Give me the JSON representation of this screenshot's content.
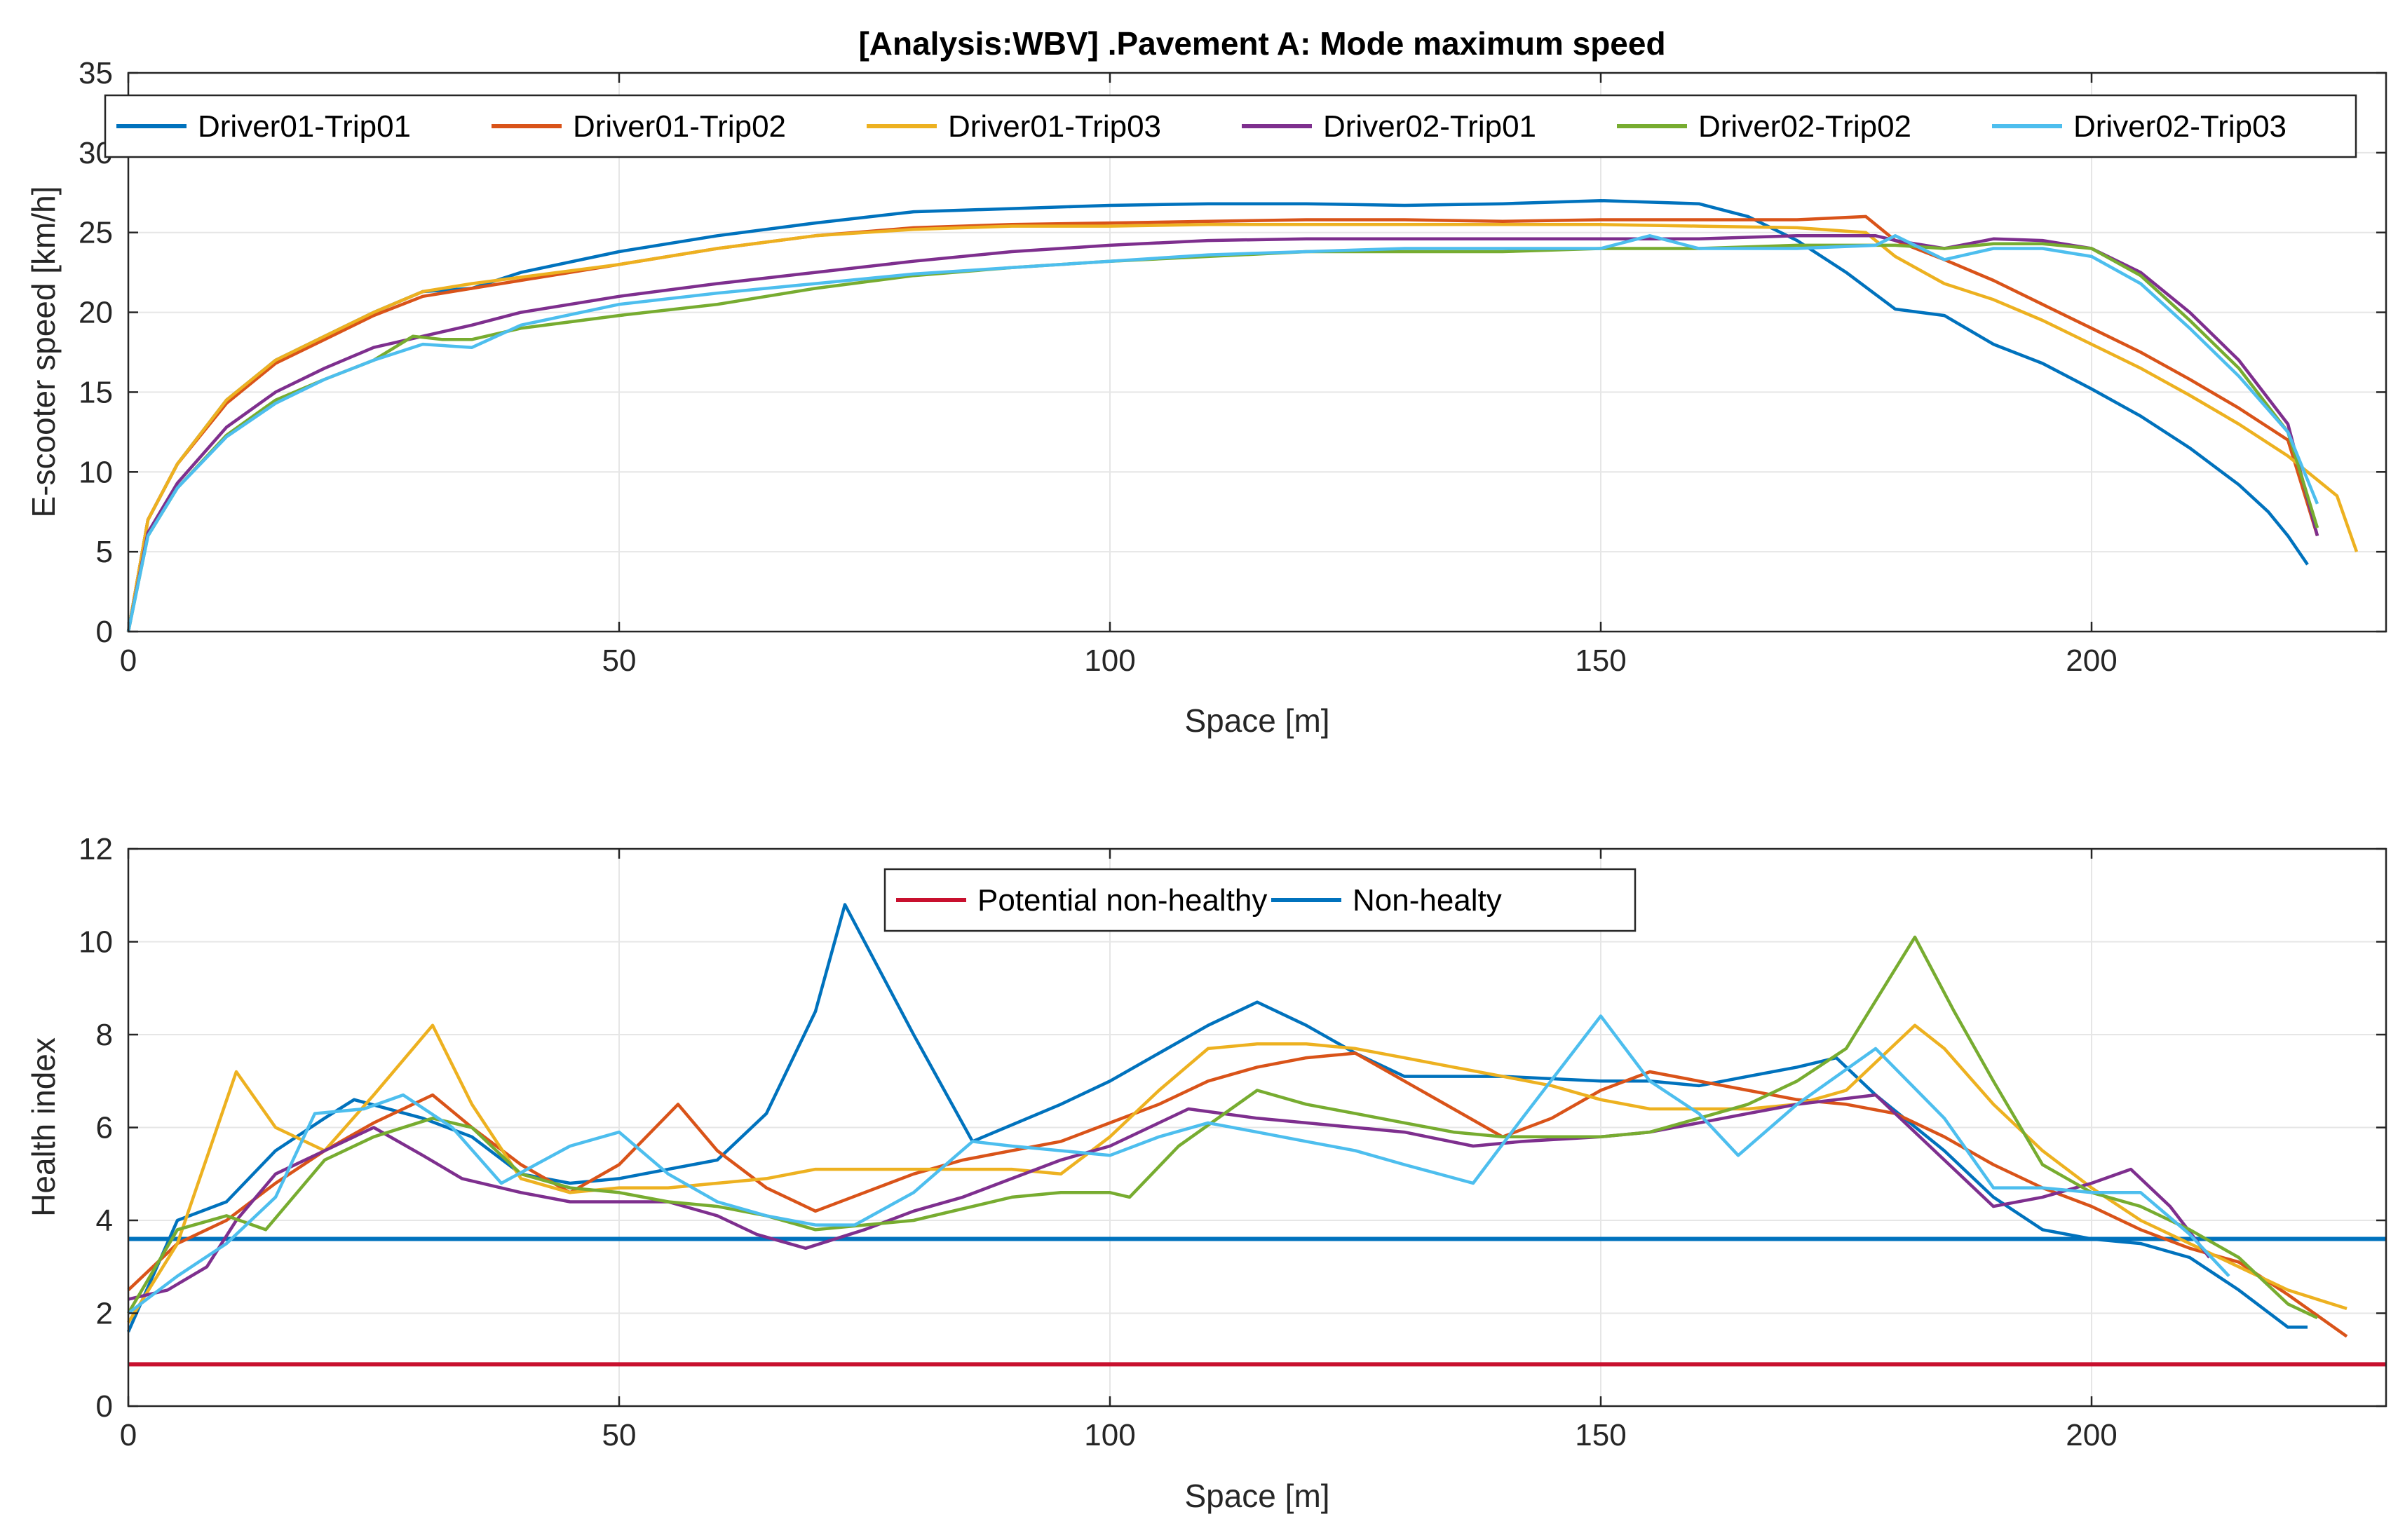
{
  "chart_data": [
    {
      "type": "line",
      "title": "[Analysis:WBV] .Pavement A: Mode maximum speed",
      "xlabel": "Space [m]",
      "ylabel": "E-scooter speed [km/h]",
      "xlim": [
        0,
        230
      ],
      "ylim": [
        0,
        35
      ],
      "xticks": [
        0,
        50,
        100,
        150,
        200
      ],
      "yticks": [
        0,
        5,
        10,
        15,
        20,
        25,
        30,
        35
      ],
      "grid": true,
      "legend": "top, horizontal",
      "series": [
        {
          "name": "Driver01-Trip01",
          "color": "#0072BD",
          "x": [
            0,
            2,
            5,
            10,
            15,
            20,
            25,
            30,
            35,
            40,
            50,
            60,
            70,
            80,
            90,
            100,
            110,
            120,
            130,
            140,
            150,
            160,
            165,
            170,
            175,
            180,
            185,
            190,
            195,
            200,
            205,
            210,
            215,
            218,
            220,
            222
          ],
          "y": [
            0,
            7,
            10.5,
            14.5,
            17,
            18.5,
            20,
            21.3,
            21.5,
            22.5,
            23.8,
            24.8,
            25.6,
            26.3,
            26.5,
            26.7,
            26.8,
            26.8,
            26.7,
            26.8,
            27,
            26.8,
            26,
            24.5,
            22.5,
            20.2,
            19.8,
            18,
            16.8,
            15.2,
            13.5,
            11.5,
            9.2,
            7.5,
            6,
            4.2
          ]
        },
        {
          "name": "Driver01-Trip02",
          "color": "#D95319",
          "x": [
            0,
            2,
            5,
            10,
            15,
            20,
            25,
            30,
            35,
            40,
            50,
            60,
            70,
            80,
            90,
            100,
            110,
            120,
            130,
            140,
            150,
            160,
            170,
            177,
            180,
            185,
            190,
            195,
            200,
            205,
            210,
            215,
            220,
            223
          ],
          "y": [
            0,
            7,
            10.5,
            14.3,
            16.8,
            18.3,
            19.8,
            21,
            21.5,
            22,
            23,
            24,
            24.8,
            25.3,
            25.5,
            25.6,
            25.7,
            25.8,
            25.8,
            25.7,
            25.8,
            25.8,
            25.8,
            26,
            24.5,
            23.3,
            22,
            20.5,
            19,
            17.5,
            15.8,
            14,
            12,
            6
          ]
        },
        {
          "name": "Driver01-Trip03",
          "color": "#EDB120",
          "x": [
            0,
            2,
            5,
            10,
            15,
            20,
            25,
            30,
            35,
            40,
            50,
            60,
            70,
            80,
            90,
            100,
            110,
            120,
            130,
            140,
            150,
            160,
            170,
            177,
            180,
            185,
            190,
            195,
            200,
            205,
            210,
            215,
            220,
            225,
            227
          ],
          "y": [
            0,
            7,
            10.5,
            14.5,
            17,
            18.5,
            20,
            21.3,
            21.8,
            22.2,
            23,
            24,
            24.8,
            25.2,
            25.4,
            25.4,
            25.5,
            25.5,
            25.5,
            25.5,
            25.5,
            25.4,
            25.3,
            25,
            23.5,
            21.8,
            20.8,
            19.5,
            18,
            16.5,
            14.8,
            13,
            11,
            8.5,
            5
          ]
        },
        {
          "name": "Driver02-Trip01",
          "color": "#7E2F8E",
          "x": [
            0,
            2,
            5,
            10,
            15,
            20,
            25,
            30,
            35,
            40,
            50,
            60,
            70,
            80,
            90,
            100,
            110,
            120,
            130,
            140,
            150,
            160,
            170,
            178,
            180,
            185,
            190,
            195,
            200,
            205,
            210,
            215,
            220,
            223
          ],
          "y": [
            0,
            6.2,
            9.3,
            12.8,
            15,
            16.5,
            17.8,
            18.5,
            19.2,
            20,
            21,
            21.8,
            22.5,
            23.2,
            23.8,
            24.2,
            24.5,
            24.6,
            24.6,
            24.6,
            24.6,
            24.6,
            24.8,
            24.8,
            24.5,
            24,
            24.6,
            24.5,
            24,
            22.5,
            20,
            17,
            13,
            6
          ]
        },
        {
          "name": "Driver02-Trip02",
          "color": "#77AC30",
          "x": [
            0,
            2,
            5,
            10,
            15,
            20,
            25,
            29,
            32,
            35,
            40,
            50,
            60,
            70,
            80,
            90,
            100,
            110,
            120,
            130,
            140,
            150,
            160,
            170,
            178,
            180,
            185,
            190,
            195,
            200,
            205,
            210,
            215,
            220,
            223
          ],
          "y": [
            0,
            6,
            9,
            12.3,
            14.5,
            15.8,
            17,
            18.5,
            18.3,
            18.3,
            19,
            19.8,
            20.5,
            21.5,
            22.3,
            22.8,
            23.2,
            23.5,
            23.8,
            23.8,
            23.8,
            24,
            24,
            24.2,
            24.2,
            24.2,
            24,
            24.3,
            24.3,
            24,
            22.3,
            19.5,
            16.5,
            12.5,
            6.5
          ]
        },
        {
          "name": "Driver02-Trip03",
          "color": "#4DBEEE",
          "x": [
            0,
            2,
            5,
            10,
            15,
            20,
            25,
            30,
            35,
            40,
            50,
            60,
            70,
            80,
            90,
            100,
            110,
            120,
            130,
            140,
            150,
            155,
            160,
            170,
            178,
            180,
            185,
            190,
            195,
            200,
            205,
            210,
            215,
            220,
            223
          ],
          "y": [
            0,
            6,
            9,
            12.2,
            14.3,
            15.8,
            17,
            18,
            17.8,
            19.2,
            20.5,
            21.2,
            21.8,
            22.4,
            22.8,
            23.2,
            23.6,
            23.8,
            24,
            24,
            24,
            24.8,
            24,
            24,
            24.2,
            24.8,
            23.3,
            24,
            24,
            23.5,
            21.8,
            19,
            16,
            12.5,
            8
          ]
        }
      ]
    },
    {
      "type": "line",
      "title": "",
      "xlabel": "Space [m]",
      "ylabel": "Health index",
      "xlim": [
        0,
        230
      ],
      "ylim": [
        0,
        12
      ],
      "xticks": [
        0,
        50,
        100,
        150,
        200
      ],
      "yticks": [
        0,
        2,
        4,
        6,
        8,
        10,
        12
      ],
      "grid": true,
      "legend": "top-center, horizontal",
      "thresholds": [
        {
          "name": "Potential non-healthy",
          "color": "#C8102E",
          "value": 0.9
        },
        {
          "name": "Non-healty",
          "color": "#0072BD",
          "value": 3.6
        }
      ],
      "series": [
        {
          "name": "Driver01-Trip01",
          "color": "#0072BD",
          "x": [
            0,
            5,
            10,
            15,
            20,
            23,
            30,
            35,
            40,
            45,
            50,
            55,
            60,
            65,
            70,
            73,
            80,
            86,
            95,
            100,
            105,
            110,
            115,
            120,
            125,
            130,
            140,
            150,
            155,
            160,
            165,
            170,
            174,
            178,
            185,
            190,
            195,
            200,
            205,
            210,
            215,
            220,
            222
          ],
          "y": [
            1.6,
            4,
            4.4,
            5.5,
            6.2,
            6.6,
            6.2,
            5.8,
            5,
            4.8,
            4.9,
            5.1,
            5.3,
            6.3,
            8.5,
            10.8,
            8,
            5.7,
            6.5,
            7,
            7.6,
            8.2,
            8.7,
            8.2,
            7.6,
            7.1,
            7.1,
            7.0,
            7.0,
            6.9,
            7.1,
            7.3,
            7.5,
            6.7,
            5.5,
            4.5,
            3.8,
            3.6,
            3.5,
            3.2,
            2.5,
            1.7,
            1.7
          ]
        },
        {
          "name": "Driver01-Trip02",
          "color": "#D95319",
          "x": [
            0,
            5,
            10,
            15,
            20,
            25,
            31,
            35,
            40,
            45,
            50,
            56,
            60,
            65,
            70,
            75,
            80,
            85,
            90,
            95,
            100,
            105,
            110,
            115,
            120,
            125,
            130,
            135,
            140,
            145,
            150,
            155,
            160,
            165,
            170,
            175,
            180,
            185,
            190,
            195,
            200,
            205,
            210,
            215,
            220,
            226
          ],
          "y": [
            2.5,
            3.5,
            4,
            4.8,
            5.5,
            6.1,
            6.7,
            6.0,
            5.2,
            4.6,
            5.2,
            6.5,
            5.5,
            4.7,
            4.2,
            4.6,
            5.0,
            5.3,
            5.5,
            5.7,
            6.1,
            6.5,
            7.0,
            7.3,
            7.5,
            7.6,
            7.0,
            6.4,
            5.8,
            6.2,
            6.8,
            7.2,
            7.0,
            6.8,
            6.6,
            6.5,
            6.3,
            5.8,
            5.2,
            4.7,
            4.3,
            3.8,
            3.4,
            3.1,
            2.4,
            1.5
          ]
        },
        {
          "name": "Driver01-Trip03",
          "color": "#EDB120",
          "x": [
            0,
            5,
            11,
            15,
            20,
            25,
            31,
            35,
            40,
            45,
            50,
            55,
            60,
            65,
            70,
            75,
            80,
            85,
            90,
            95,
            100,
            105,
            110,
            115,
            120,
            125,
            130,
            135,
            140,
            145,
            150,
            155,
            160,
            165,
            170,
            175,
            182,
            185,
            190,
            195,
            200,
            205,
            210,
            215,
            220,
            226
          ],
          "y": [
            1.8,
            3.5,
            7.2,
            6.0,
            5.5,
            6.7,
            8.2,
            6.5,
            4.9,
            4.6,
            4.7,
            4.7,
            4.8,
            4.9,
            5.1,
            5.1,
            5.1,
            5.1,
            5.1,
            5.0,
            5.8,
            6.8,
            7.7,
            7.8,
            7.8,
            7.7,
            7.5,
            7.3,
            7.1,
            6.9,
            6.6,
            6.4,
            6.4,
            6.4,
            6.5,
            6.8,
            8.2,
            7.7,
            6.5,
            5.5,
            4.7,
            4.0,
            3.5,
            3.0,
            2.5,
            2.1
          ]
        },
        {
          "name": "Driver02-Trip01",
          "color": "#7E2F8E",
          "x": [
            0,
            4,
            8,
            11,
            15,
            20,
            25,
            30,
            34,
            40,
            45,
            50,
            55,
            60,
            64,
            69,
            75,
            80,
            85,
            90,
            95,
            100,
            104,
            108,
            115,
            120,
            125,
            130,
            137,
            142,
            150,
            155,
            160,
            165,
            170,
            174,
            178,
            185,
            190,
            195,
            200,
            204,
            208,
            212
          ],
          "y": [
            2.3,
            2.5,
            3.0,
            4.0,
            5.0,
            5.5,
            6.0,
            5.4,
            4.9,
            4.6,
            4.4,
            4.4,
            4.4,
            4.1,
            3.7,
            3.4,
            3.8,
            4.2,
            4.5,
            4.9,
            5.3,
            5.6,
            6.0,
            6.4,
            6.2,
            6.1,
            6.0,
            5.9,
            5.6,
            5.7,
            5.8,
            5.9,
            6.1,
            6.3,
            6.5,
            6.6,
            6.7,
            5.3,
            4.3,
            4.5,
            4.8,
            5.1,
            4.3,
            3.2
          ]
        },
        {
          "name": "Driver02-Trip02",
          "color": "#77AC30",
          "x": [
            0,
            5,
            10,
            14,
            20,
            25,
            31,
            35,
            40,
            45,
            50,
            55,
            60,
            65,
            70,
            75,
            80,
            90,
            95,
            100,
            102,
            107,
            115,
            120,
            125,
            130,
            135,
            140,
            150,
            155,
            160,
            165,
            170,
            175,
            182,
            186,
            190,
            195,
            200,
            205,
            210,
            215,
            220,
            223
          ],
          "y": [
            2.0,
            3.8,
            4.1,
            3.8,
            5.3,
            5.8,
            6.2,
            6.0,
            5.0,
            4.7,
            4.6,
            4.4,
            4.3,
            4.1,
            3.8,
            3.9,
            4.0,
            4.5,
            4.6,
            4.6,
            4.5,
            5.6,
            6.8,
            6.5,
            6.3,
            6.1,
            5.9,
            5.8,
            5.8,
            5.9,
            6.2,
            6.5,
            7.0,
            7.7,
            10.1,
            8.5,
            7.0,
            5.2,
            4.6,
            4.3,
            3.8,
            3.2,
            2.2,
            1.9
          ]
        },
        {
          "name": "Driver02-Trip03",
          "color": "#4DBEEE",
          "x": [
            0,
            5,
            10,
            15,
            19,
            24,
            28,
            33,
            38,
            45,
            50,
            55,
            60,
            65,
            70,
            74,
            80,
            86,
            90,
            100,
            105,
            110,
            115,
            120,
            125,
            130,
            137,
            142,
            150,
            155,
            160,
            164,
            170,
            178,
            185,
            190,
            195,
            200,
            205,
            210,
            214
          ],
          "y": [
            2.0,
            2.8,
            3.5,
            4.5,
            6.3,
            6.4,
            6.7,
            6.0,
            4.8,
            5.6,
            5.9,
            5.0,
            4.4,
            4.1,
            3.9,
            3.9,
            4.6,
            5.7,
            5.6,
            5.4,
            5.8,
            6.1,
            5.9,
            5.7,
            5.5,
            5.2,
            4.8,
            6.2,
            8.4,
            7.0,
            6.3,
            5.4,
            6.5,
            7.7,
            6.2,
            4.7,
            4.7,
            4.6,
            4.6,
            3.7,
            2.8
          ]
        }
      ]
    }
  ]
}
